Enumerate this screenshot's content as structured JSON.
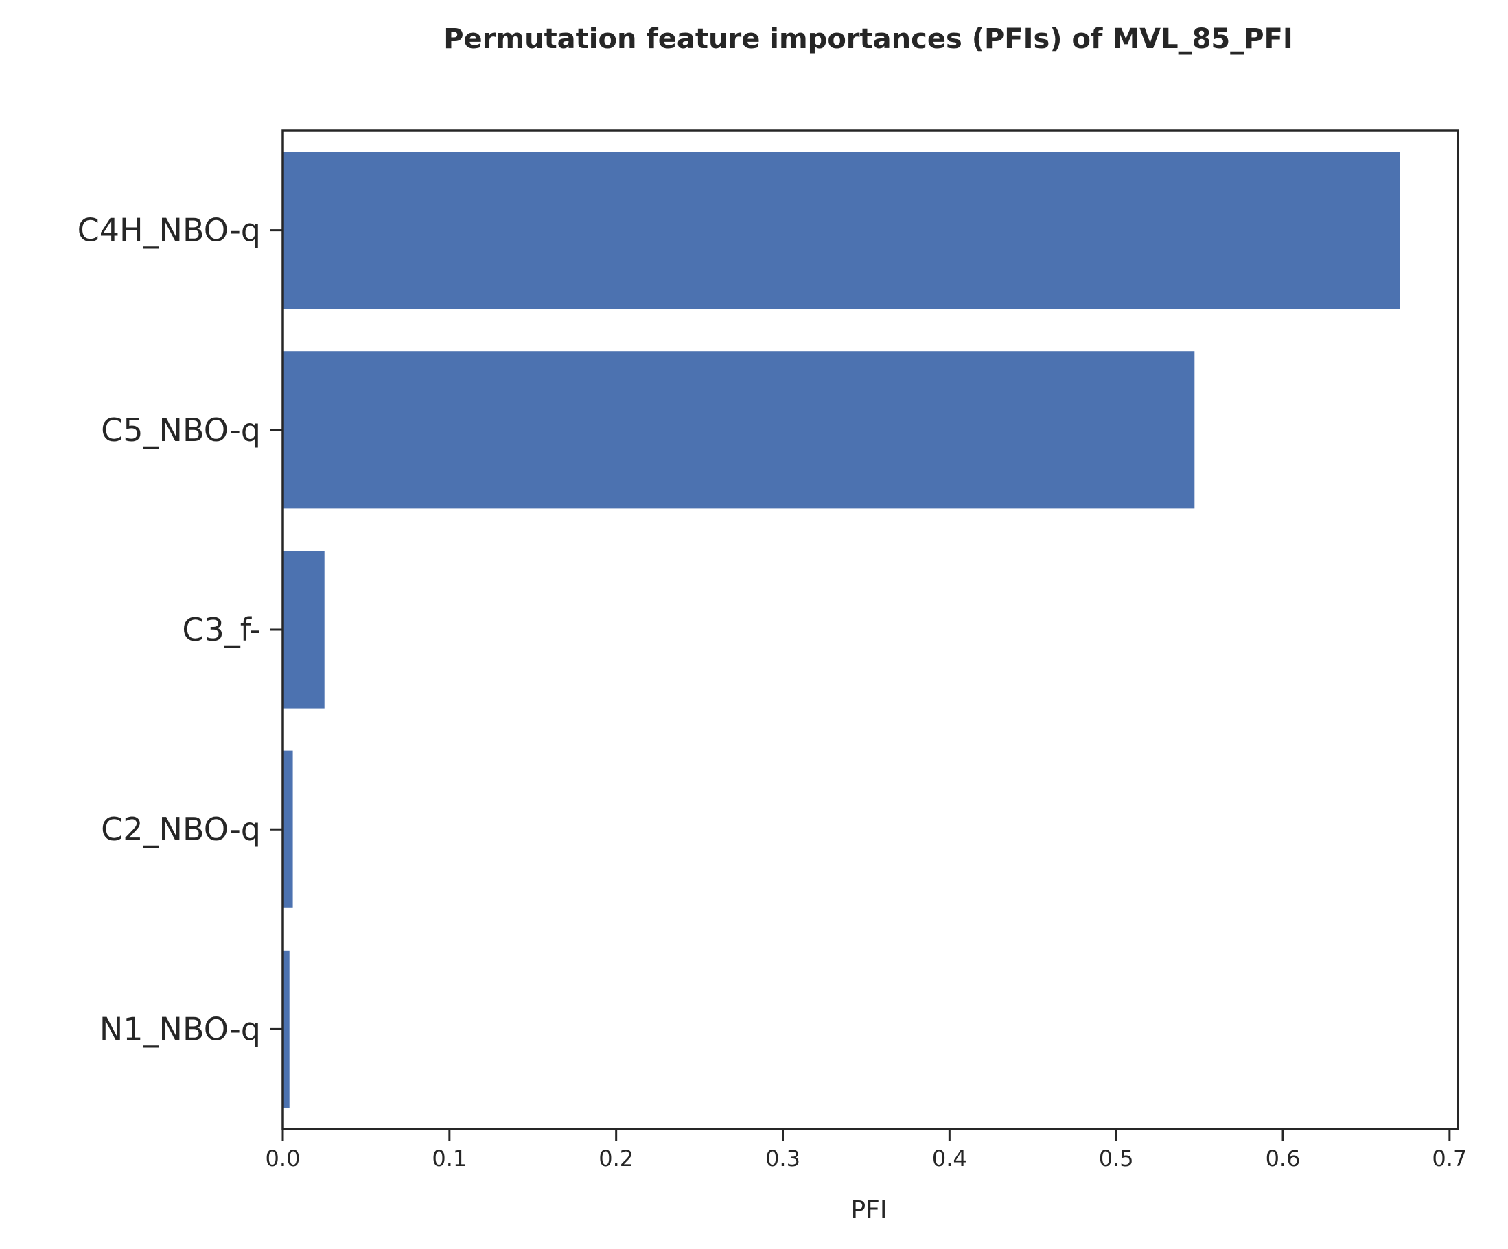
{
  "chart_data": {
    "type": "bar",
    "orientation": "horizontal",
    "title": "Permutation feature importances (PFIs) of MVL_85_PFI",
    "xlabel": "PFI",
    "ylabel": "",
    "categories": [
      "C4H_NBO-q",
      "C5_NBO-q",
      "C3_f-",
      "C2_NBO-q",
      "N1_NBO-q"
    ],
    "values": [
      0.67,
      0.547,
      0.025,
      0.006,
      0.004
    ],
    "xlim": [
      0,
      0.705
    ],
    "xticks": [
      0.0,
      0.1,
      0.2,
      0.3,
      0.4,
      0.5,
      0.6,
      0.7
    ],
    "xtick_labels": [
      "0.0",
      "0.1",
      "0.2",
      "0.3",
      "0.4",
      "0.5",
      "0.6",
      "0.7"
    ],
    "grid": false,
    "bar_color": "#4c72b0"
  }
}
